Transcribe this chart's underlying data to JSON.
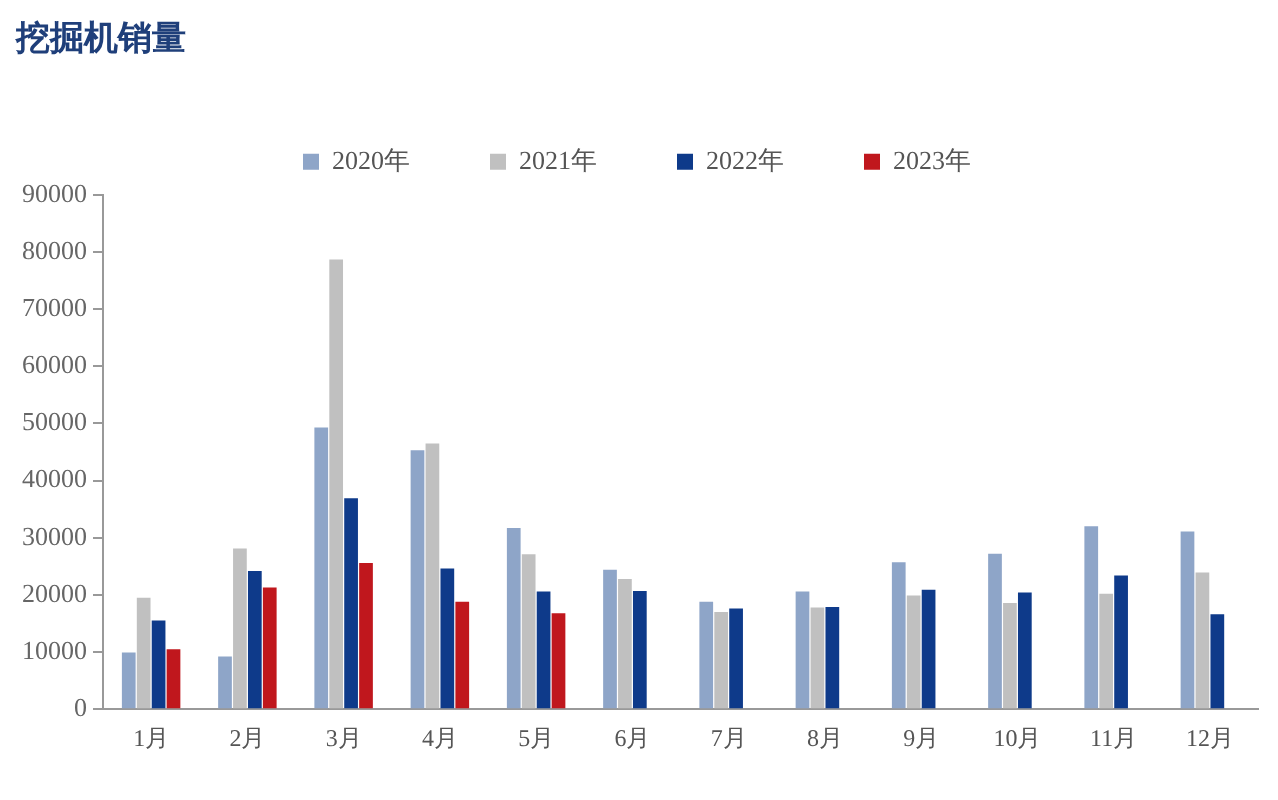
{
  "chart_data": {
    "type": "bar",
    "title": "挖掘机销量",
    "categories": [
      "1月",
      "2月",
      "3月",
      "4月",
      "5月",
      "6月",
      "7月",
      "8月",
      "9月",
      "10月",
      "11月",
      "12月"
    ],
    "series": [
      {
        "name": "2020年",
        "color": "#8ea5c8",
        "values": [
          9900,
          9200,
          49300,
          45300,
          31700,
          24400,
          18800,
          20600,
          25700,
          27200,
          32000,
          31100
        ]
      },
      {
        "name": "2021年",
        "color": "#c0c0c0",
        "values": [
          19500,
          28100,
          78700,
          46500,
          27100,
          22800,
          17000,
          17800,
          19900,
          18600,
          20200,
          23900
        ]
      },
      {
        "name": "2022年",
        "color": "#0e3a8a",
        "values": [
          15500,
          24200,
          36900,
          24600,
          20600,
          20700,
          17600,
          17900,
          20900,
          20400,
          23400,
          16600
        ]
      },
      {
        "name": "2023年",
        "color": "#c0171d",
        "values": [
          10500,
          21300,
          25600,
          18800,
          16800,
          null,
          null,
          null,
          null,
          null,
          null,
          null
        ]
      }
    ],
    "ylim": [
      0,
      90000
    ],
    "yticks": [
      0,
      10000,
      20000,
      30000,
      40000,
      50000,
      60000,
      70000,
      80000,
      90000
    ],
    "grid": false,
    "legend": "top"
  }
}
